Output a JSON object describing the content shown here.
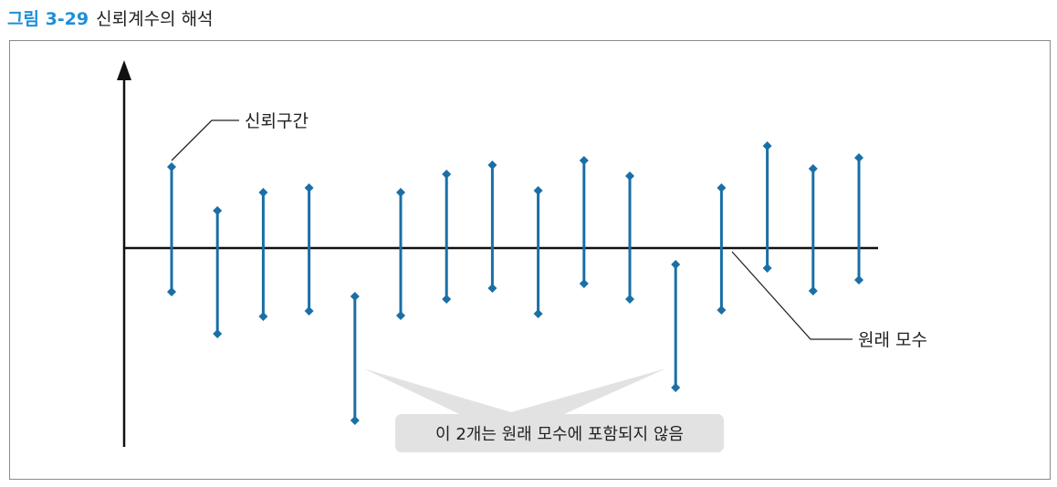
{
  "figure": {
    "number": "그림 3-29",
    "title": "신뢰계수의 해석"
  },
  "labels": {
    "interval": "신뢰구간",
    "parameter": "원래 모수",
    "note": "이 2개는 원래 모수에 포함되지 않음"
  },
  "colors": {
    "interval": "#1a6fa6",
    "axis": "#111111",
    "accent": "#1c8fd6",
    "note_bg": "#e2e2e2"
  },
  "chart_data": {
    "type": "interval",
    "parameter_value": 0,
    "intervals": [
      {
        "upper": 0.89,
        "lower": -0.48
      },
      {
        "upper": 0.41,
        "lower": -0.94
      },
      {
        "upper": 0.61,
        "lower": -0.75
      },
      {
        "upper": 0.66,
        "lower": -0.69
      },
      {
        "upper": -0.53,
        "lower": -1.89,
        "excludes_parameter": true
      },
      {
        "upper": 0.61,
        "lower": -0.74
      },
      {
        "upper": 0.81,
        "lower": -0.56
      },
      {
        "upper": 0.91,
        "lower": -0.44
      },
      {
        "upper": 0.63,
        "lower": -0.72
      },
      {
        "upper": 0.96,
        "lower": -0.39
      },
      {
        "upper": 0.79,
        "lower": -0.56
      },
      {
        "upper": -0.18,
        "lower": -1.53,
        "excludes_parameter": true
      },
      {
        "upper": 0.66,
        "lower": -0.68
      },
      {
        "upper": 1.12,
        "lower": -0.22
      },
      {
        "upper": 0.87,
        "lower": -0.47
      },
      {
        "upper": 0.99,
        "lower": -0.35
      }
    ]
  }
}
